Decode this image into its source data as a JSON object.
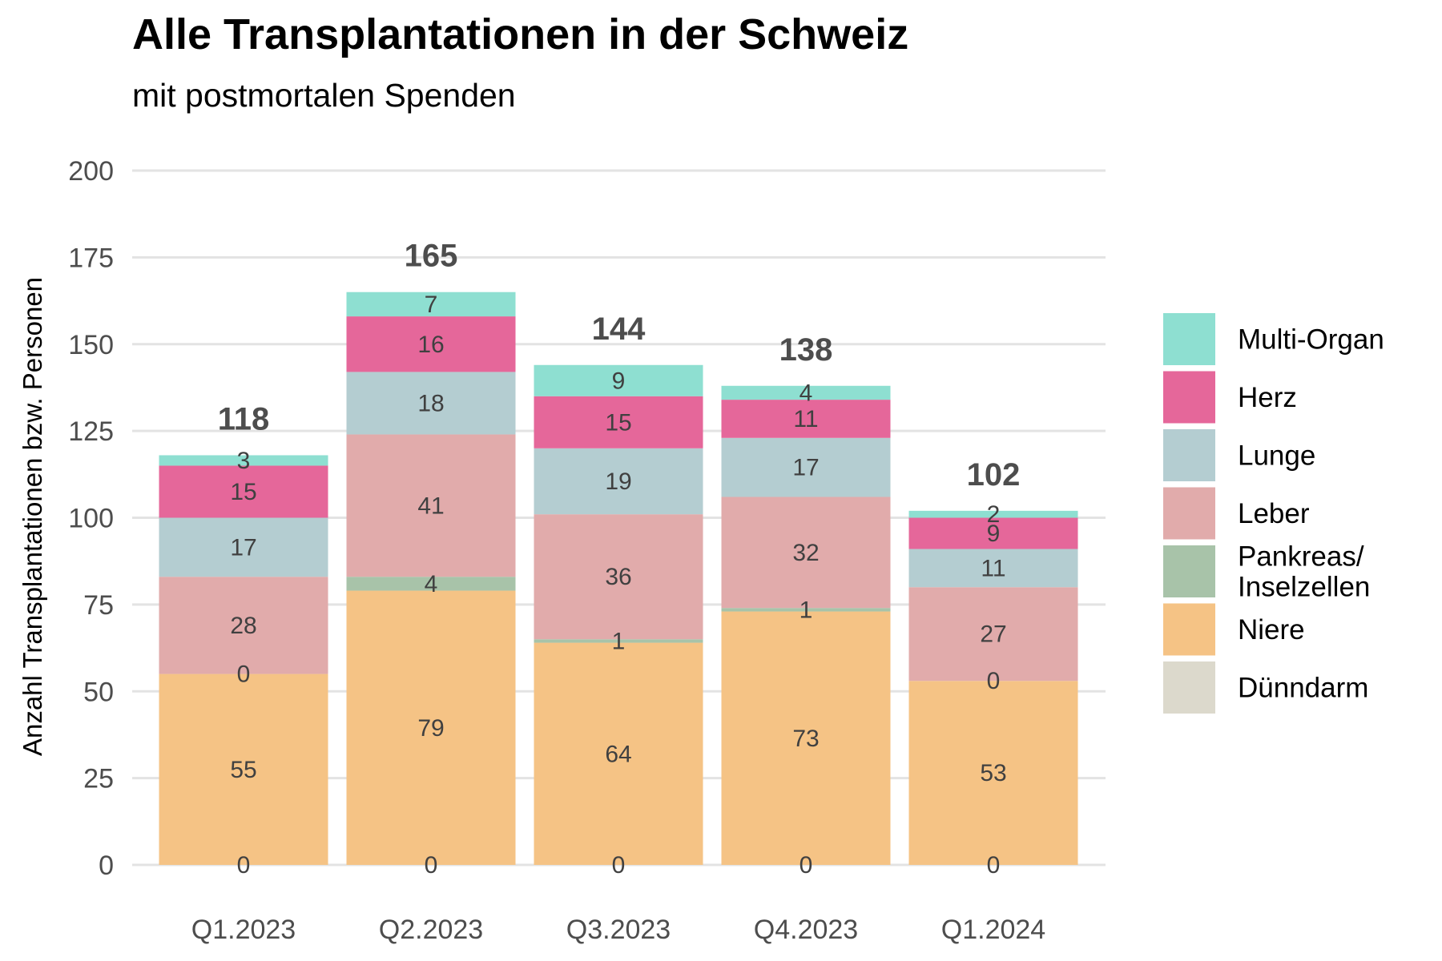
{
  "chart_data": {
    "type": "bar",
    "stacked": true,
    "title": "Alle Transplantationen in der Schweiz",
    "subtitle": "mit postmortalen Spenden",
    "xlabel": "",
    "ylabel": "Anzahl Transplantationen bzw. Personen",
    "ylim": [
      0,
      200
    ],
    "yticks": [
      0,
      25,
      50,
      75,
      100,
      125,
      150,
      175,
      200
    ],
    "grid": true,
    "legend_position": "right",
    "categories": [
      "Q1.2023",
      "Q2.2023",
      "Q3.2023",
      "Q4.2023",
      "Q1.2024"
    ],
    "totals": [
      118,
      165,
      144,
      138,
      102
    ],
    "series": [
      {
        "name": "Dünndarm",
        "color": "#dcd9cc",
        "values": [
          0,
          0,
          0,
          0,
          0
        ]
      },
      {
        "name": "Niere",
        "color": "#f5c385",
        "values": [
          55,
          79,
          64,
          73,
          53
        ]
      },
      {
        "name": "Pankreas/\nInselzellen",
        "color": "#a8c3a9",
        "values": [
          0,
          4,
          1,
          1,
          0
        ]
      },
      {
        "name": "Leber",
        "color": "#e1abab",
        "values": [
          28,
          41,
          36,
          32,
          27
        ]
      },
      {
        "name": "Lunge",
        "color": "#b4cdd1",
        "values": [
          17,
          18,
          19,
          17,
          11
        ]
      },
      {
        "name": "Herz",
        "color": "#e5679a",
        "values": [
          15,
          16,
          15,
          11,
          9
        ]
      },
      {
        "name": "Multi-Organ",
        "color": "#8edfd1",
        "values": [
          3,
          7,
          9,
          4,
          2
        ]
      }
    ],
    "legend_order": [
      "Multi-Organ",
      "Herz",
      "Lunge",
      "Leber",
      "Pankreas/\nInselzellen",
      "Niere",
      "Dünndarm"
    ]
  }
}
